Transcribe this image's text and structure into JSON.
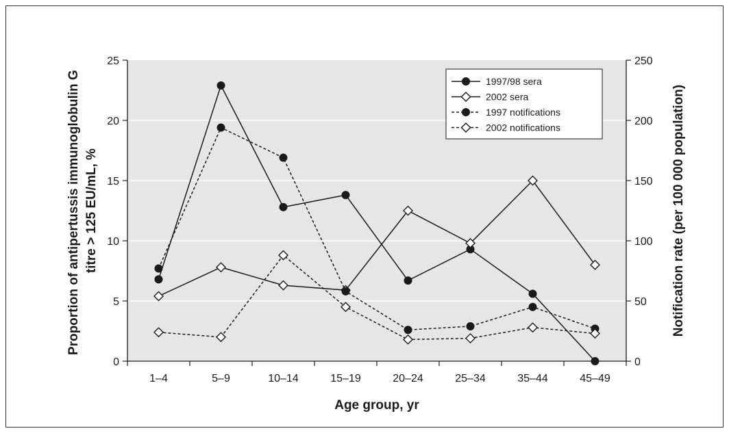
{
  "chart_data": {
    "type": "line",
    "title": "",
    "xlabel": "Age group, yr",
    "ylabel_left": [
      "Proportion of antipertussis immunoglobulin G",
      "titre > 125 EU/mL, %"
    ],
    "ylabel_right": "Notification rate (per 100 000 population)",
    "categories": [
      "1–4",
      "5–9",
      "10–14",
      "15–19",
      "20–24",
      "25–34",
      "35–44",
      "45–49"
    ],
    "y_left": {
      "lim": [
        0,
        25
      ],
      "ticks": [
        "0",
        "5",
        "10",
        "15",
        "20",
        "25"
      ]
    },
    "y_right": {
      "lim": [
        0,
        250
      ],
      "ticks": [
        "0",
        "50",
        "100",
        "150",
        "200",
        "250"
      ]
    },
    "grid": true,
    "background": "#e6e6e6",
    "legend_position": "top-right",
    "series": [
      {
        "name": "1997/98 sera",
        "axis": "left",
        "marker": "filled-circle",
        "line": "solid",
        "values": [
          6.8,
          22.9,
          12.8,
          13.8,
          6.7,
          9.3,
          5.6,
          0.0
        ]
      },
      {
        "name": "2002 sera",
        "axis": "left",
        "marker": "open-diamond",
        "line": "solid",
        "values": [
          5.4,
          7.8,
          6.3,
          5.9,
          12.5,
          9.8,
          15.0,
          8.0
        ]
      },
      {
        "name": "1997 notifications",
        "axis": "right",
        "marker": "filled-circle",
        "line": "dashed",
        "values": [
          77,
          194,
          169,
          58,
          26,
          29,
          45,
          27
        ]
      },
      {
        "name": "2002 notifications",
        "axis": "right",
        "marker": "open-diamond",
        "line": "dashed",
        "values": [
          24,
          20,
          88,
          45,
          18,
          19,
          28,
          23
        ]
      }
    ]
  }
}
